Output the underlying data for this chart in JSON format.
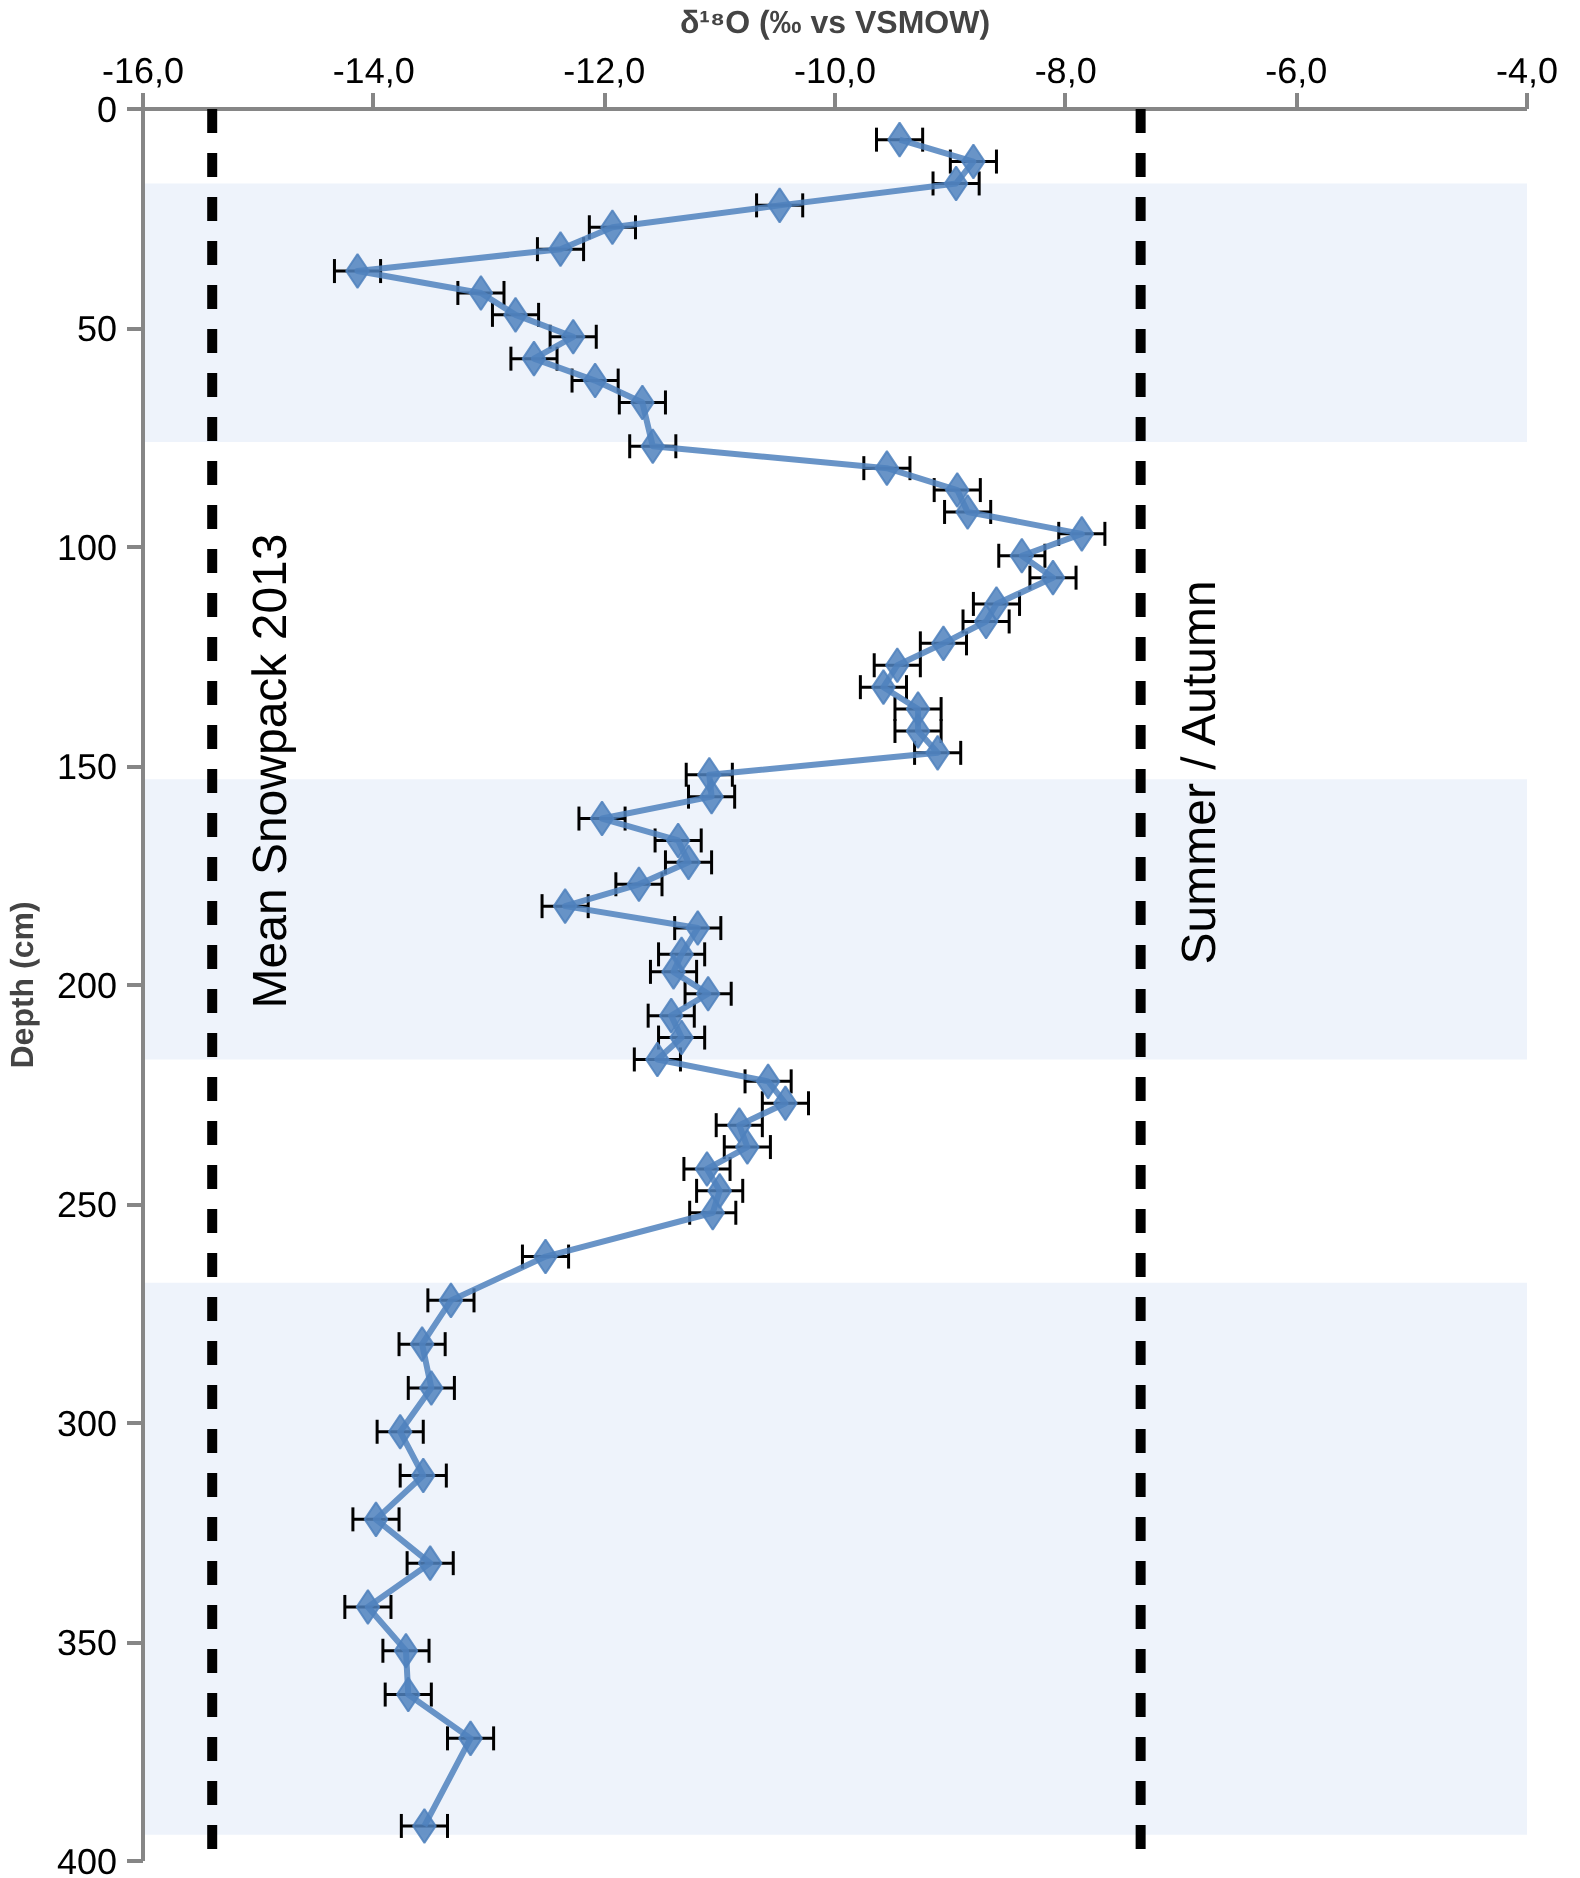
{
  "chart_data": {
    "type": "line",
    "xlabel": "δ¹⁸O (‰ vs VSMOW)",
    "ylabel": "Depth (cm)",
    "series": [
      {
        "color": "#4f81bd",
        "x": [
          -9.44,
          -8.8,
          -8.95,
          -10.48,
          -11.93,
          -12.38,
          -14.14,
          -13.07,
          -12.77,
          -12.27,
          -12.61,
          -12.08,
          -11.67,
          -11.58,
          -9.55,
          -8.94,
          -8.85,
          -7.86,
          -8.38,
          -8.11,
          -8.6,
          -8.69,
          -9.06,
          -9.46,
          -9.58,
          -9.28,
          -9.28,
          -9.11,
          -11.09,
          -11.07,
          -12.02,
          -11.36,
          -11.27,
          -11.7,
          -12.34,
          -11.19,
          -11.33,
          -11.4,
          -11.1,
          -11.42,
          -11.33,
          -11.54,
          -10.58,
          -10.43,
          -10.83,
          -10.76,
          -11.11,
          -11.0,
          -11.06,
          -12.51,
          -13.33,
          -13.58,
          -13.5,
          -13.77,
          -13.57,
          -13.98,
          -13.51,
          -14.05,
          -13.72,
          -13.7,
          -13.16,
          -13.56
        ],
        "values": [
          7,
          12,
          17,
          22,
          27,
          32,
          37,
          42,
          47,
          52,
          57,
          62,
          67,
          77,
          82,
          87,
          92,
          97,
          102,
          107,
          113,
          117,
          122,
          127,
          132,
          137,
          142,
          147,
          152,
          157,
          162,
          167,
          172,
          177,
          182,
          187,
          193,
          197,
          202,
          207,
          212,
          217,
          222,
          227,
          232,
          237,
          242,
          247,
          252,
          262,
          272,
          282,
          292,
          302,
          312,
          322,
          332,
          342,
          352,
          362,
          372,
          392
        ],
        "xerrors": [
          0.2,
          0.2,
          0.2,
          0.2,
          0.2,
          0.2,
          0.2,
          0.2,
          0.2,
          0.2,
          0.2,
          0.2,
          0.2,
          0.2,
          0.2,
          0.2,
          0.2,
          0.2,
          0.2,
          0.2,
          0.2,
          0.2,
          0.2,
          0.2,
          0.2,
          0.2,
          0.2,
          0.2,
          0.2,
          0.2,
          0.2,
          0.2,
          0.2,
          0.2,
          0.2,
          0.2,
          0.2,
          0.2,
          0.2,
          0.2,
          0.2,
          0.2,
          0.2,
          0.2,
          0.2,
          0.2,
          0.2,
          0.2,
          0.2,
          0.2,
          0.2,
          0.2,
          0.2,
          0.2,
          0.2,
          0.2,
          0.2,
          0.2,
          0.2,
          0.2,
          0.2,
          0.2
        ]
      }
    ],
    "marker": "diamond",
    "line_style": "solid",
    "xlim": [
      -16,
      -4
    ],
    "xticks": [
      {
        "value": -16,
        "label": "-16,0"
      },
      {
        "value": -14,
        "label": "-14,0"
      },
      {
        "value": -12,
        "label": "-12,0"
      },
      {
        "value": -10,
        "label": "-10,0"
      },
      {
        "value": -8,
        "label": "-8,0"
      },
      {
        "value": -6,
        "label": "-6,0"
      },
      {
        "value": -4,
        "label": "-4,0"
      }
    ],
    "ylim": [
      400,
      0
    ],
    "yticks": [
      0,
      50,
      100,
      150,
      200,
      250,
      300,
      350,
      400
    ],
    "ref_lines": [
      {
        "axis": "x",
        "value": -15.4,
        "label": "Mean Snowpack 2013",
        "color": "#000000",
        "line_style": "dashed"
      },
      {
        "axis": "x",
        "value": -7.35,
        "label": "Summer / Autumn",
        "color": "#000000",
        "line_style": "dashed"
      }
    ],
    "bands": [
      {
        "axis": "y",
        "from": 17,
        "to": 76,
        "label": null,
        "color": "#eef3fb"
      },
      {
        "axis": "y",
        "from": 153,
        "to": 217,
        "label": null,
        "color": "#eef3fb"
      },
      {
        "axis": "y",
        "from": 268,
        "to": 394,
        "label": null,
        "color": "#eef3fb"
      }
    ],
    "grid": false
  }
}
